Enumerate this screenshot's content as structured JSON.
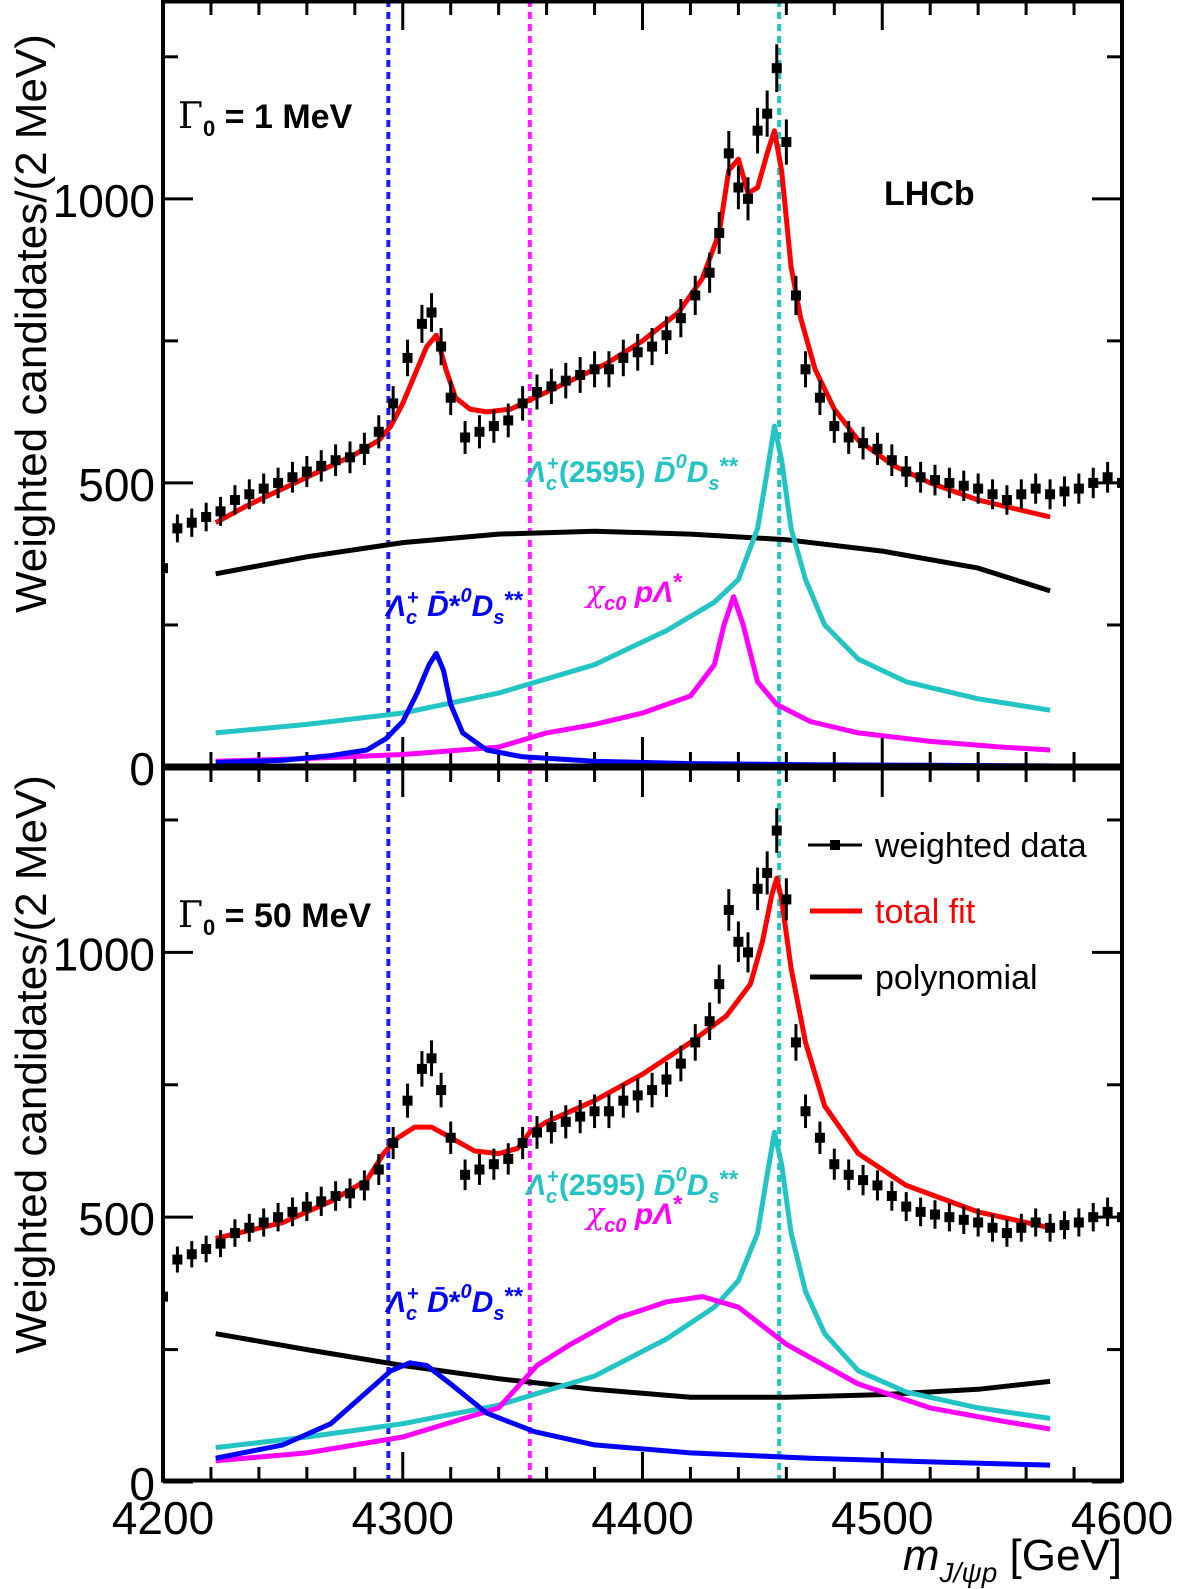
{
  "chart_data": [
    {
      "type": "line",
      "panel": "top",
      "label_html": "Γ<sub>0</sub> = 1 MeV",
      "label_text": "Γ0 = 1 MeV",
      "experiment": "LHCb",
      "ylabel": "Weighted candidates/(2 MeV)",
      "xlim": [
        4200,
        4600
      ],
      "ylim": [
        0,
        1350
      ],
      "yticks": [
        0,
        500,
        1000
      ],
      "threshold_lines": [
        {
          "x": 4294,
          "color": "#1a1aff"
        },
        {
          "x": 4353,
          "color": "#ff1aff"
        },
        {
          "x": 4457,
          "color": "#22c4c4"
        }
      ],
      "data_points": {
        "x": [
          4200,
          4206,
          4212,
          4218,
          4224,
          4230,
          4236,
          4242,
          4248,
          4254,
          4260,
          4266,
          4272,
          4278,
          4284,
          4290,
          4296,
          4302,
          4308,
          4312,
          4316,
          4320,
          4326,
          4332,
          4338,
          4344,
          4350,
          4356,
          4362,
          4368,
          4374,
          4380,
          4386,
          4392,
          4398,
          4404,
          4410,
          4416,
          4422,
          4428,
          4432,
          4436,
          4440,
          4444,
          4448,
          4452,
          4456,
          4460,
          4464,
          4468,
          4474,
          4480,
          4486,
          4492,
          4498,
          4504,
          4510,
          4516,
          4522,
          4528,
          4534,
          4540,
          4546,
          4552,
          4558,
          4564,
          4570,
          4576,
          4582,
          4588,
          4594,
          4600
        ],
        "y": [
          350,
          420,
          430,
          440,
          450,
          470,
          480,
          490,
          500,
          510,
          520,
          530,
          540,
          545,
          560,
          590,
          640,
          720,
          780,
          800,
          740,
          650,
          580,
          590,
          600,
          610,
          640,
          660,
          670,
          680,
          690,
          700,
          700,
          720,
          730,
          740,
          760,
          790,
          830,
          870,
          940,
          1080,
          1020,
          1000,
          1120,
          1150,
          1230,
          1100,
          830,
          700,
          650,
          600,
          580,
          570,
          560,
          540,
          520,
          510,
          505,
          500,
          495,
          490,
          480,
          470,
          480,
          490,
          480,
          485,
          490,
          500,
          510,
          500
        ]
      },
      "series": [
        {
          "name": "total fit",
          "color": "#ff0000",
          "x": [
            4222,
            4235,
            4250,
            4265,
            4280,
            4290,
            4295,
            4300,
            4306,
            4310,
            4314,
            4318,
            4322,
            4328,
            4335,
            4345,
            4355,
            4370,
            4385,
            4400,
            4415,
            4425,
            4432,
            4436,
            4440,
            4444,
            4448,
            4452,
            4455,
            4458,
            4462,
            4466,
            4472,
            4480,
            4490,
            4505,
            4520,
            4540,
            4555,
            4570
          ],
          "y": [
            430,
            460,
            490,
            520,
            550,
            575,
            600,
            640,
            700,
            740,
            760,
            700,
            650,
            630,
            625,
            630,
            650,
            680,
            710,
            750,
            800,
            860,
            940,
            1050,
            1070,
            1010,
            1020,
            1080,
            1120,
            1050,
            880,
            790,
            700,
            630,
            575,
            530,
            500,
            470,
            455,
            440
          ]
        },
        {
          "name": "polynomial",
          "color": "#000000",
          "x": [
            4222,
            4260,
            4300,
            4340,
            4380,
            4420,
            4460,
            4500,
            4540,
            4570
          ],
          "y": [
            340,
            370,
            395,
            410,
            415,
            410,
            400,
            380,
            350,
            310
          ]
        },
        {
          "name": "Λc⁺(2595) D̄⁰Ds**",
          "color": "#22c4c4",
          "x": [
            4222,
            4260,
            4300,
            4340,
            4380,
            4410,
            4430,
            4440,
            4448,
            4452,
            4455,
            4458,
            4462,
            4468,
            4476,
            4490,
            4510,
            4540,
            4570
          ],
          "y": [
            60,
            75,
            95,
            130,
            180,
            240,
            290,
            330,
            420,
            520,
            600,
            540,
            420,
            330,
            250,
            190,
            150,
            120,
            100
          ]
        },
        {
          "name": "χc0 pΛ*",
          "color": "#ff00ff",
          "x": [
            4222,
            4260,
            4300,
            4340,
            4352,
            4360,
            4380,
            4400,
            4420,
            4430,
            4434,
            4438,
            4442,
            4448,
            4456,
            4470,
            4490,
            4520,
            4550,
            4570
          ],
          "y": [
            10,
            15,
            22,
            35,
            50,
            60,
            75,
            95,
            125,
            180,
            250,
            300,
            250,
            150,
            110,
            80,
            60,
            45,
            35,
            30
          ]
        },
        {
          "name": "Λc⁺ D̄*⁰Ds**",
          "color": "#0000ff",
          "x": [
            4222,
            4250,
            4270,
            4285,
            4293,
            4300,
            4306,
            4311,
            4314,
            4317,
            4320,
            4325,
            4335,
            4350,
            4380,
            4420,
            4470,
            4520,
            4570
          ],
          "y": [
            8,
            12,
            20,
            30,
            50,
            80,
            130,
            180,
            200,
            170,
            110,
            60,
            30,
            18,
            10,
            6,
            4,
            3,
            2
          ]
        }
      ],
      "annotations": [
        {
          "text": "Λc⁺(2595) D̄⁰Ds**",
          "color": "#22c4c4"
        },
        {
          "text": "χc0 pΛ*",
          "color": "#ff00ff"
        },
        {
          "text": "Λc⁺ D̄*⁰Ds**",
          "color": "#0000ff"
        }
      ]
    },
    {
      "type": "line",
      "panel": "bottom",
      "label_html": "Γ<sub>0</sub> = 50 MeV",
      "label_text": "Γ0 = 50 MeV",
      "ylabel": "Weighted candidates/(2 MeV)",
      "xlabel_html": "<i>m</i><sub><i>J/ψp</i></sub> [GeV]",
      "xlabel_text": "mJ/ψp [GeV]",
      "xlim": [
        4200,
        4600
      ],
      "ylim": [
        0,
        1350
      ],
      "xticks": [
        4200,
        4300,
        4400,
        4500,
        4600
      ],
      "yticks": [
        0,
        500,
        1000
      ],
      "threshold_lines": [
        {
          "x": 4294,
          "color": "#1a1aff"
        },
        {
          "x": 4353,
          "color": "#ff1aff"
        },
        {
          "x": 4457,
          "color": "#22c4c4"
        }
      ],
      "legend": [
        {
          "label": "weighted data",
          "color": "#000000",
          "marker": true
        },
        {
          "label": "total fit",
          "color": "#ff0000",
          "text_color": "#ff0000"
        },
        {
          "label": "polynomial",
          "color": "#000000"
        }
      ],
      "data_points": {
        "x": [
          4200,
          4206,
          4212,
          4218,
          4224,
          4230,
          4236,
          4242,
          4248,
          4254,
          4260,
          4266,
          4272,
          4278,
          4284,
          4290,
          4296,
          4302,
          4308,
          4312,
          4316,
          4320,
          4326,
          4332,
          4338,
          4344,
          4350,
          4356,
          4362,
          4368,
          4374,
          4380,
          4386,
          4392,
          4398,
          4404,
          4410,
          4416,
          4422,
          4428,
          4432,
          4436,
          4440,
          4444,
          4448,
          4452,
          4456,
          4460,
          4464,
          4468,
          4474,
          4480,
          4486,
          4492,
          4498,
          4504,
          4510,
          4516,
          4522,
          4528,
          4534,
          4540,
          4546,
          4552,
          4558,
          4564,
          4570,
          4576,
          4582,
          4588,
          4594,
          4600
        ],
        "y": [
          350,
          420,
          430,
          440,
          450,
          470,
          480,
          490,
          500,
          510,
          520,
          530,
          540,
          545,
          560,
          590,
          640,
          720,
          780,
          800,
          740,
          650,
          580,
          590,
          600,
          610,
          640,
          660,
          670,
          680,
          690,
          700,
          700,
          720,
          730,
          740,
          760,
          790,
          830,
          870,
          940,
          1080,
          1020,
          1000,
          1120,
          1150,
          1230,
          1100,
          830,
          700,
          650,
          600,
          580,
          570,
          560,
          540,
          520,
          510,
          505,
          500,
          495,
          490,
          480,
          470,
          480,
          490,
          480,
          485,
          490,
          500,
          510,
          500
        ]
      },
      "series": [
        {
          "name": "total fit",
          "color": "#ff0000",
          "x": [
            4222,
            4250,
            4270,
            4285,
            4292,
            4298,
            4305,
            4312,
            4320,
            4330,
            4340,
            4348,
            4353,
            4360,
            4380,
            4400,
            4420,
            4435,
            4445,
            4450,
            4454,
            4456,
            4458,
            4462,
            4468,
            4476,
            4490,
            4510,
            4540,
            4570
          ],
          "y": [
            460,
            490,
            530,
            570,
            620,
            650,
            670,
            670,
            650,
            625,
            620,
            630,
            660,
            680,
            720,
            770,
            830,
            880,
            940,
            1020,
            1110,
            1140,
            1100,
            970,
            830,
            710,
            620,
            560,
            510,
            480
          ]
        },
        {
          "name": "polynomial",
          "color": "#000000",
          "x": [
            4222,
            4260,
            4300,
            4340,
            4380,
            4420,
            4460,
            4500,
            4540,
            4570
          ],
          "y": [
            280,
            250,
            220,
            195,
            175,
            160,
            160,
            165,
            175,
            190
          ]
        },
        {
          "name": "Λc⁺(2595) D̄⁰Ds**",
          "color": "#22c4c4",
          "x": [
            4222,
            4260,
            4300,
            4340,
            4380,
            4410,
            4430,
            4440,
            4448,
            4452,
            4455,
            4458,
            4462,
            4468,
            4476,
            4490,
            4510,
            4540,
            4570
          ],
          "y": [
            65,
            85,
            110,
            145,
            200,
            270,
            330,
            380,
            470,
            580,
            660,
            600,
            470,
            360,
            280,
            210,
            170,
            140,
            120
          ]
        },
        {
          "name": "χc0 pΛ*",
          "color": "#ff00ff",
          "x": [
            4222,
            4260,
            4300,
            4340,
            4350,
            4356,
            4370,
            4390,
            4410,
            4425,
            4440,
            4460,
            4490,
            4520,
            4550,
            4570
          ],
          "y": [
            40,
            55,
            85,
            140,
            190,
            220,
            260,
            310,
            340,
            350,
            330,
            260,
            185,
            140,
            115,
            100
          ]
        },
        {
          "name": "Λc⁺ D̄*⁰Ds**",
          "color": "#0000ff",
          "x": [
            4222,
            4250,
            4270,
            4285,
            4295,
            4303,
            4310,
            4320,
            4335,
            4355,
            4380,
            4420,
            4470,
            4520,
            4570
          ],
          "y": [
            45,
            70,
            110,
            170,
            210,
            225,
            220,
            185,
            130,
            95,
            70,
            55,
            45,
            38,
            32
          ]
        }
      ],
      "annotations": [
        {
          "text": "Λc⁺(2595) D̄⁰Ds**",
          "color": "#22c4c4"
        },
        {
          "text": "χc0 pΛ*",
          "color": "#ff00ff"
        },
        {
          "text": "Λc⁺ D̄*⁰Ds**",
          "color": "#0000ff"
        }
      ]
    }
  ]
}
